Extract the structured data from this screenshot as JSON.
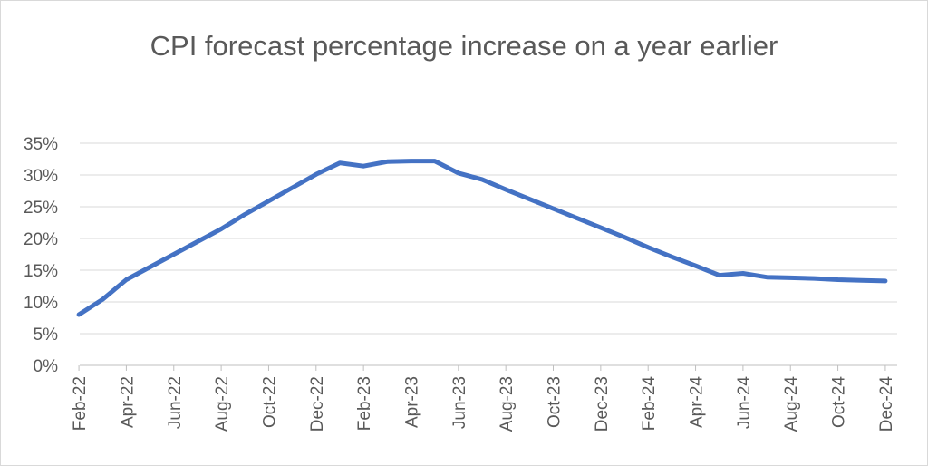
{
  "chart_data": {
    "type": "line",
    "title": "CPI forecast percentage increase on a year earlier",
    "xlabel": "",
    "ylabel": "",
    "ylim": [
      0,
      35
    ],
    "y_ticks": [
      "0%",
      "5%",
      "10%",
      "15%",
      "20%",
      "25%",
      "30%",
      "35%"
    ],
    "x_tick_labels": [
      "Feb-22",
      "Apr-22",
      "Jun-22",
      "Aug-22",
      "Oct-22",
      "Dec-22",
      "Feb-23",
      "Apr-23",
      "Jun-23",
      "Aug-23",
      "Oct-23",
      "Dec-23",
      "Feb-24",
      "Apr-24",
      "Jun-24",
      "Aug-24",
      "Oct-24",
      "Dec-24"
    ],
    "grid": true,
    "legend": "none",
    "series_color": "#4472c4",
    "series": [
      {
        "x": [
          "Feb-22",
          "Mar-22",
          "Apr-22",
          "May-22",
          "Jun-22",
          "Jul-22",
          "Aug-22",
          "Sep-22",
          "Oct-22",
          "Nov-22",
          "Dec-22",
          "Jan-23",
          "Feb-23",
          "Mar-23",
          "Apr-23",
          "May-23",
          "Jun-23",
          "Jul-23",
          "Aug-23",
          "Sep-23",
          "Oct-23",
          "Nov-23",
          "Dec-23",
          "Jan-24",
          "Feb-24",
          "Mar-24",
          "Apr-24",
          "May-24",
          "Jun-24",
          "Jul-24",
          "Aug-24",
          "Sep-24",
          "Oct-24",
          "Nov-24",
          "Dec-24"
        ],
        "values": [
          8.0,
          10.4,
          13.5,
          15.5,
          17.5,
          19.5,
          21.5,
          23.8,
          25.9,
          28.0,
          30.1,
          31.9,
          31.4,
          32.1,
          32.2,
          32.2,
          30.3,
          29.3,
          27.7,
          26.2,
          24.7,
          23.2,
          21.7,
          20.2,
          18.6,
          17.1,
          15.7,
          14.2,
          14.5,
          13.9,
          13.8,
          13.7,
          13.5,
          13.4,
          13.3
        ]
      }
    ]
  }
}
